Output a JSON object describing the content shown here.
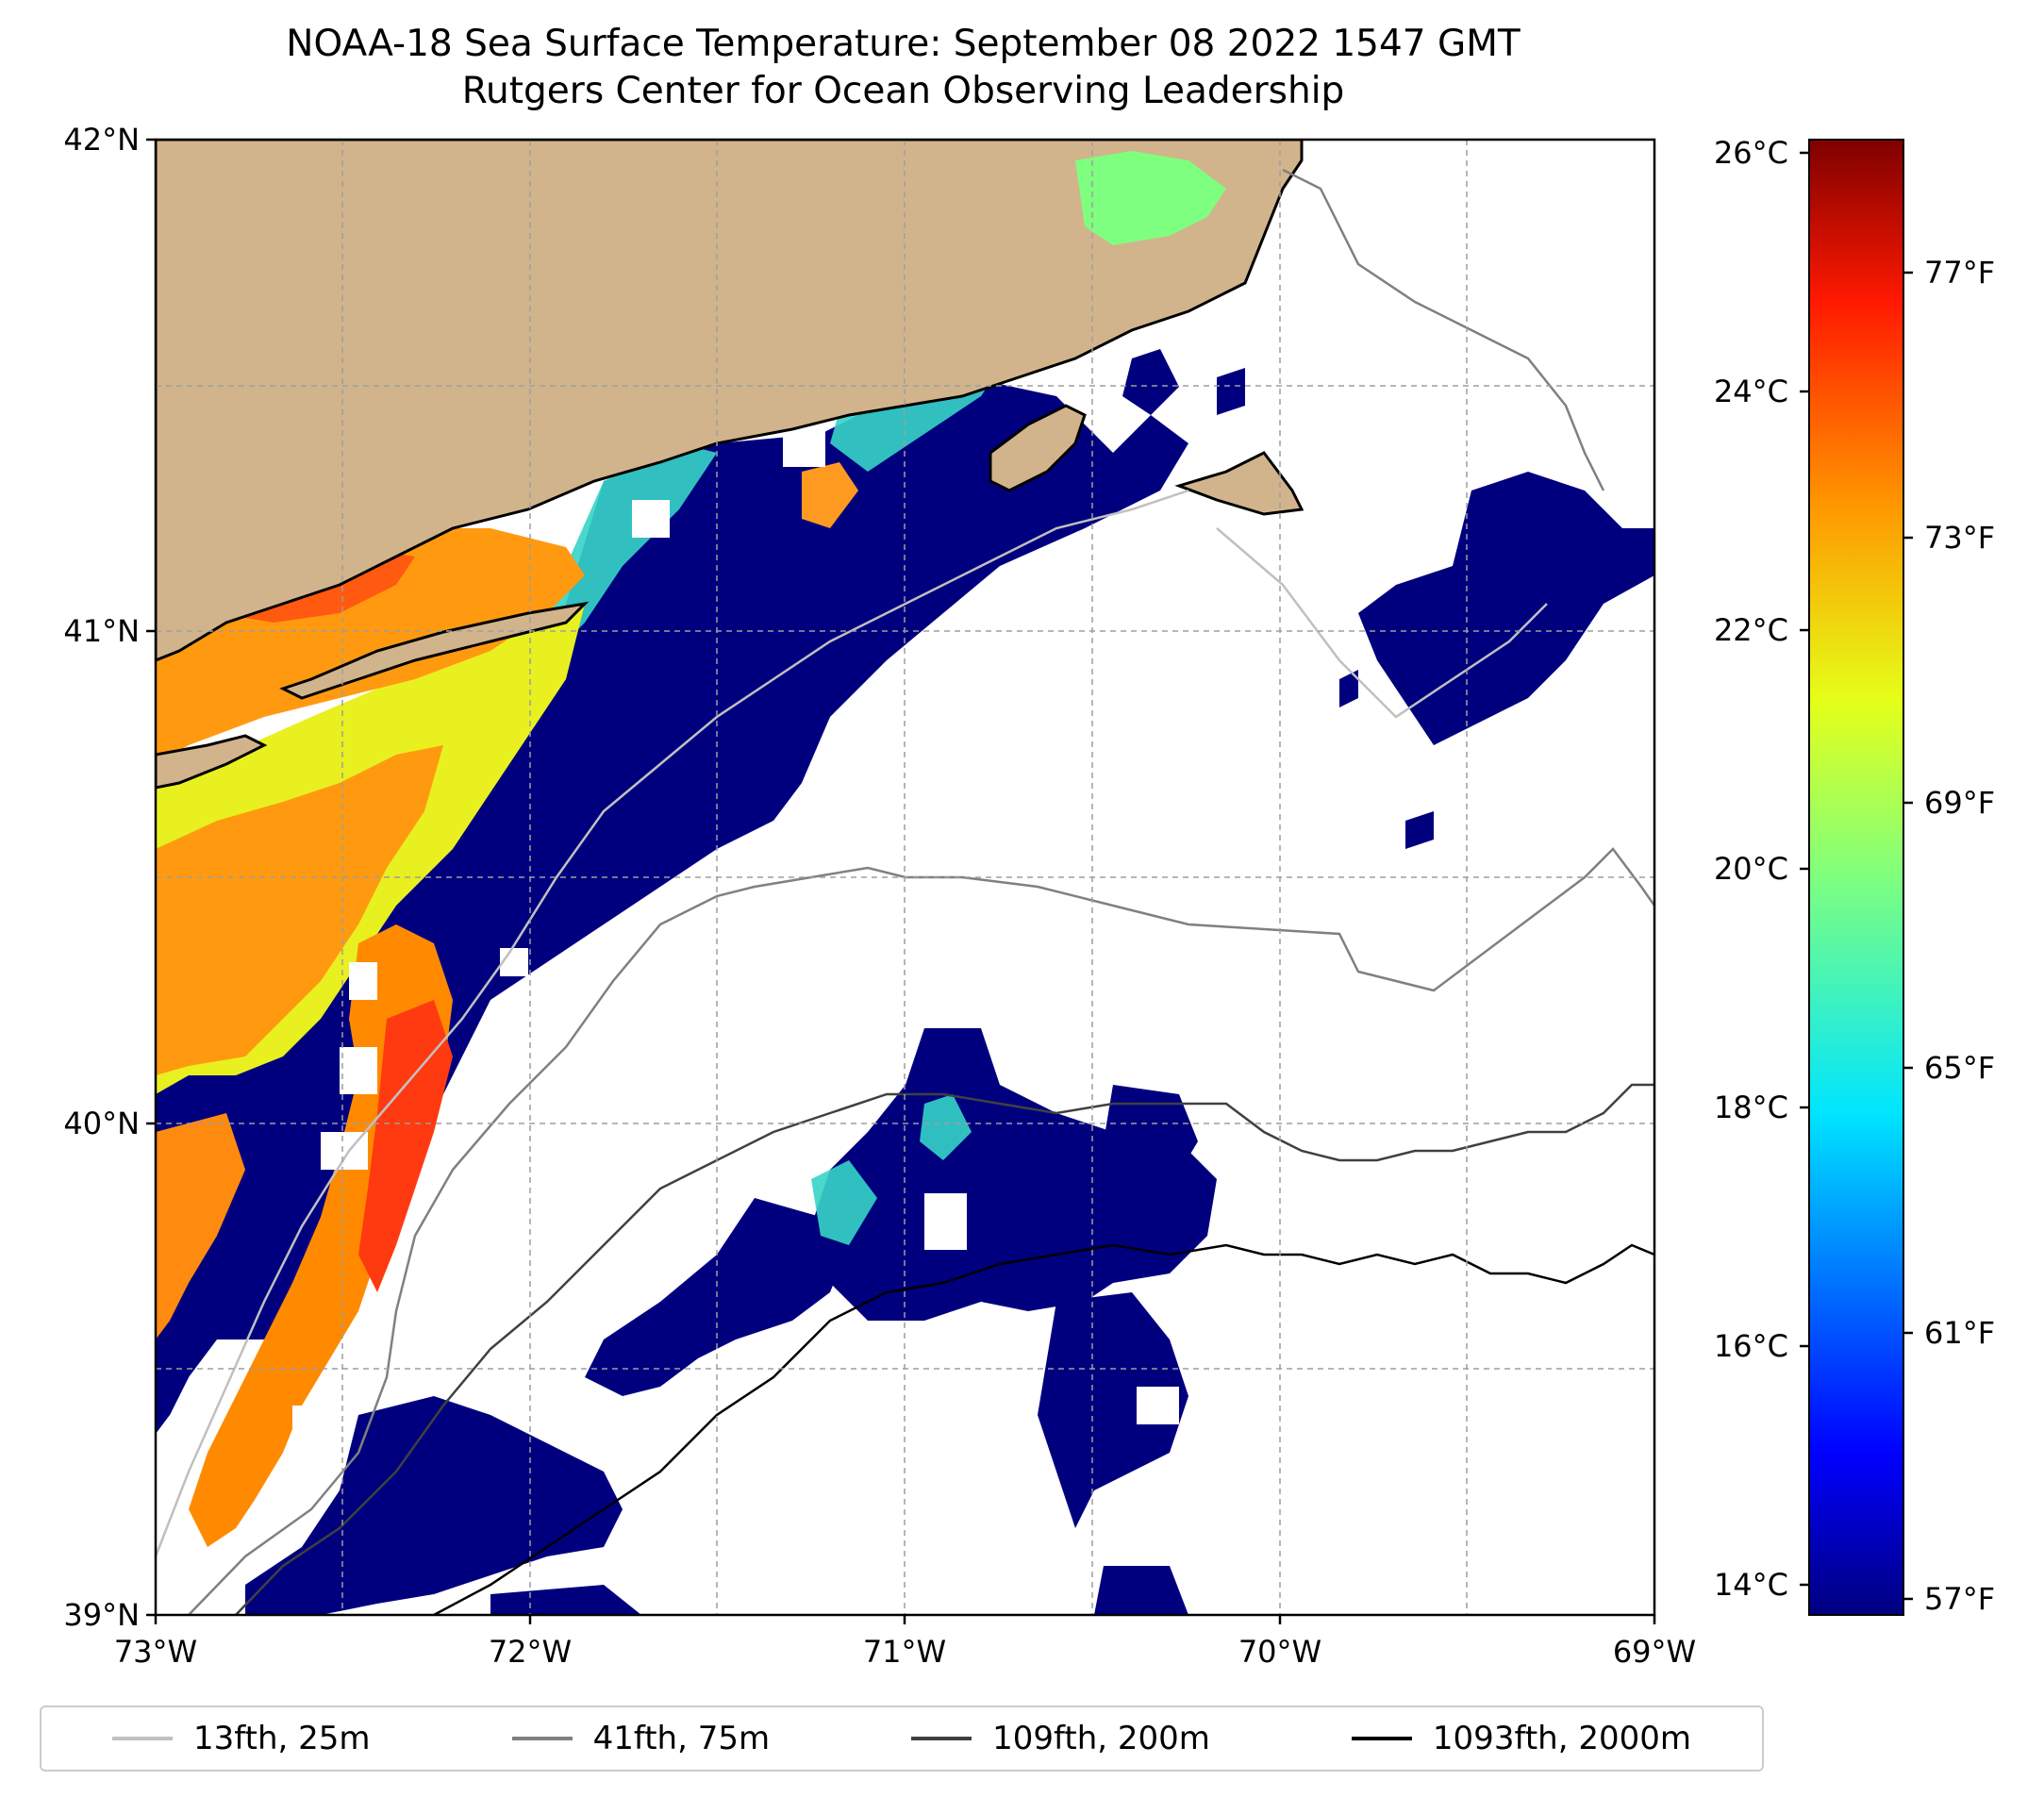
{
  "title": {
    "line1": "NOAA-18 Sea Surface Temperature: September 08 2022 1547 GMT",
    "line2": "Rutgers Center for Ocean Observing Leadership"
  },
  "map": {
    "lon_range": [
      -73,
      -69
    ],
    "lat_range": [
      39,
      42
    ],
    "x_ticks": [
      "73°W",
      "72°W",
      "71°W",
      "70°W",
      "69°W"
    ],
    "y_ticks": [
      "39°N",
      "40°N",
      "41°N",
      "42°N"
    ],
    "land_color": "#d2b48c",
    "gridlines": true
  },
  "colorbar": {
    "colormap": "jet",
    "celsius_ticks": [
      "14°C",
      "16°C",
      "18°C",
      "20°C",
      "22°C",
      "24°C",
      "26°C"
    ],
    "fahrenheit_ticks": [
      "57°F",
      "61°F",
      "65°F",
      "69°F",
      "73°F",
      "77°F"
    ]
  },
  "legend": {
    "items": [
      {
        "label": "13fth, 25m",
        "color": "#c0c0c0"
      },
      {
        "label": "41fth, 75m",
        "color": "#808080"
      },
      {
        "label": "109fth, 200m",
        "color": "#404040"
      },
      {
        "label": "1093fth, 2000m",
        "color": "#000000"
      }
    ]
  }
}
